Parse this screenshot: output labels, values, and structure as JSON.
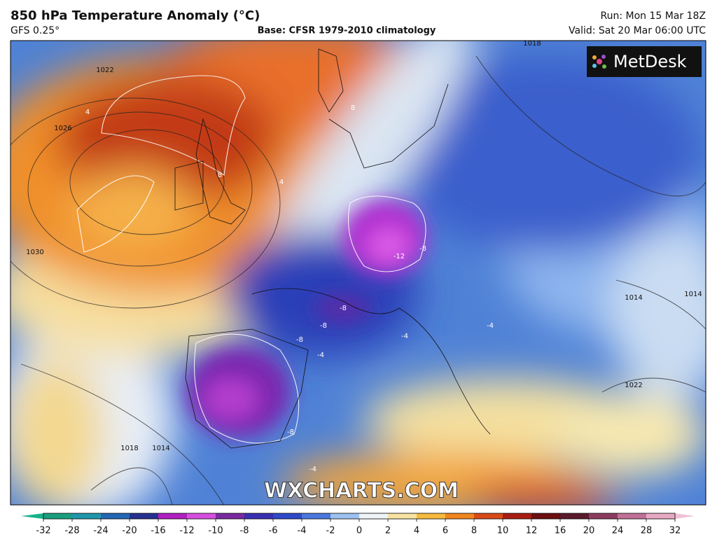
{
  "header": {
    "title": "850 hPa Temperature Anomaly (°C)",
    "model": "GFS 0.25°",
    "base": "Base: CFSR 1979-2010 climatology",
    "run": "Run: Mon 15 Mar 18Z",
    "valid": "Valid: Sat 20 Mar 06:00 UTC"
  },
  "logo": "MetDesk",
  "watermark": "WXCHARTS.COM",
  "isobar_labels": [
    "1022",
    "1026",
    "1030",
    "1018",
    "1014",
    "1018",
    "1014",
    "1014",
    "1022"
  ],
  "anomaly_labels": [
    "4",
    "8",
    "8",
    "4",
    "-12",
    "-8",
    "-8",
    "-8",
    "-8",
    "-4",
    "-4",
    "-8",
    "-4",
    "-4"
  ],
  "colorbar": {
    "ticks": [
      -32,
      -28,
      -24,
      -20,
      -16,
      -12,
      -10,
      -8,
      -6,
      -4,
      -2,
      0,
      2,
      4,
      6,
      8,
      10,
      12,
      16,
      20,
      24,
      28,
      32
    ],
    "colors": [
      "#1a9f7e",
      "#2096ac",
      "#2468b4",
      "#26318f",
      "#b01fc0",
      "#d64ee0",
      "#7a2aa0",
      "#3a2fb0",
      "#2f49c8",
      "#4a78dc",
      "#9cc0ef",
      "#eef3f8",
      "#f6e3a2",
      "#f5ba3e",
      "#f0851e",
      "#d94a18",
      "#a81c12",
      "#6e0e10",
      "#5a1a2c",
      "#8c3c60",
      "#c07094",
      "#e6a8c2"
    ],
    "under_color": "#17b28a",
    "over_color": "#f0c0d4"
  }
}
